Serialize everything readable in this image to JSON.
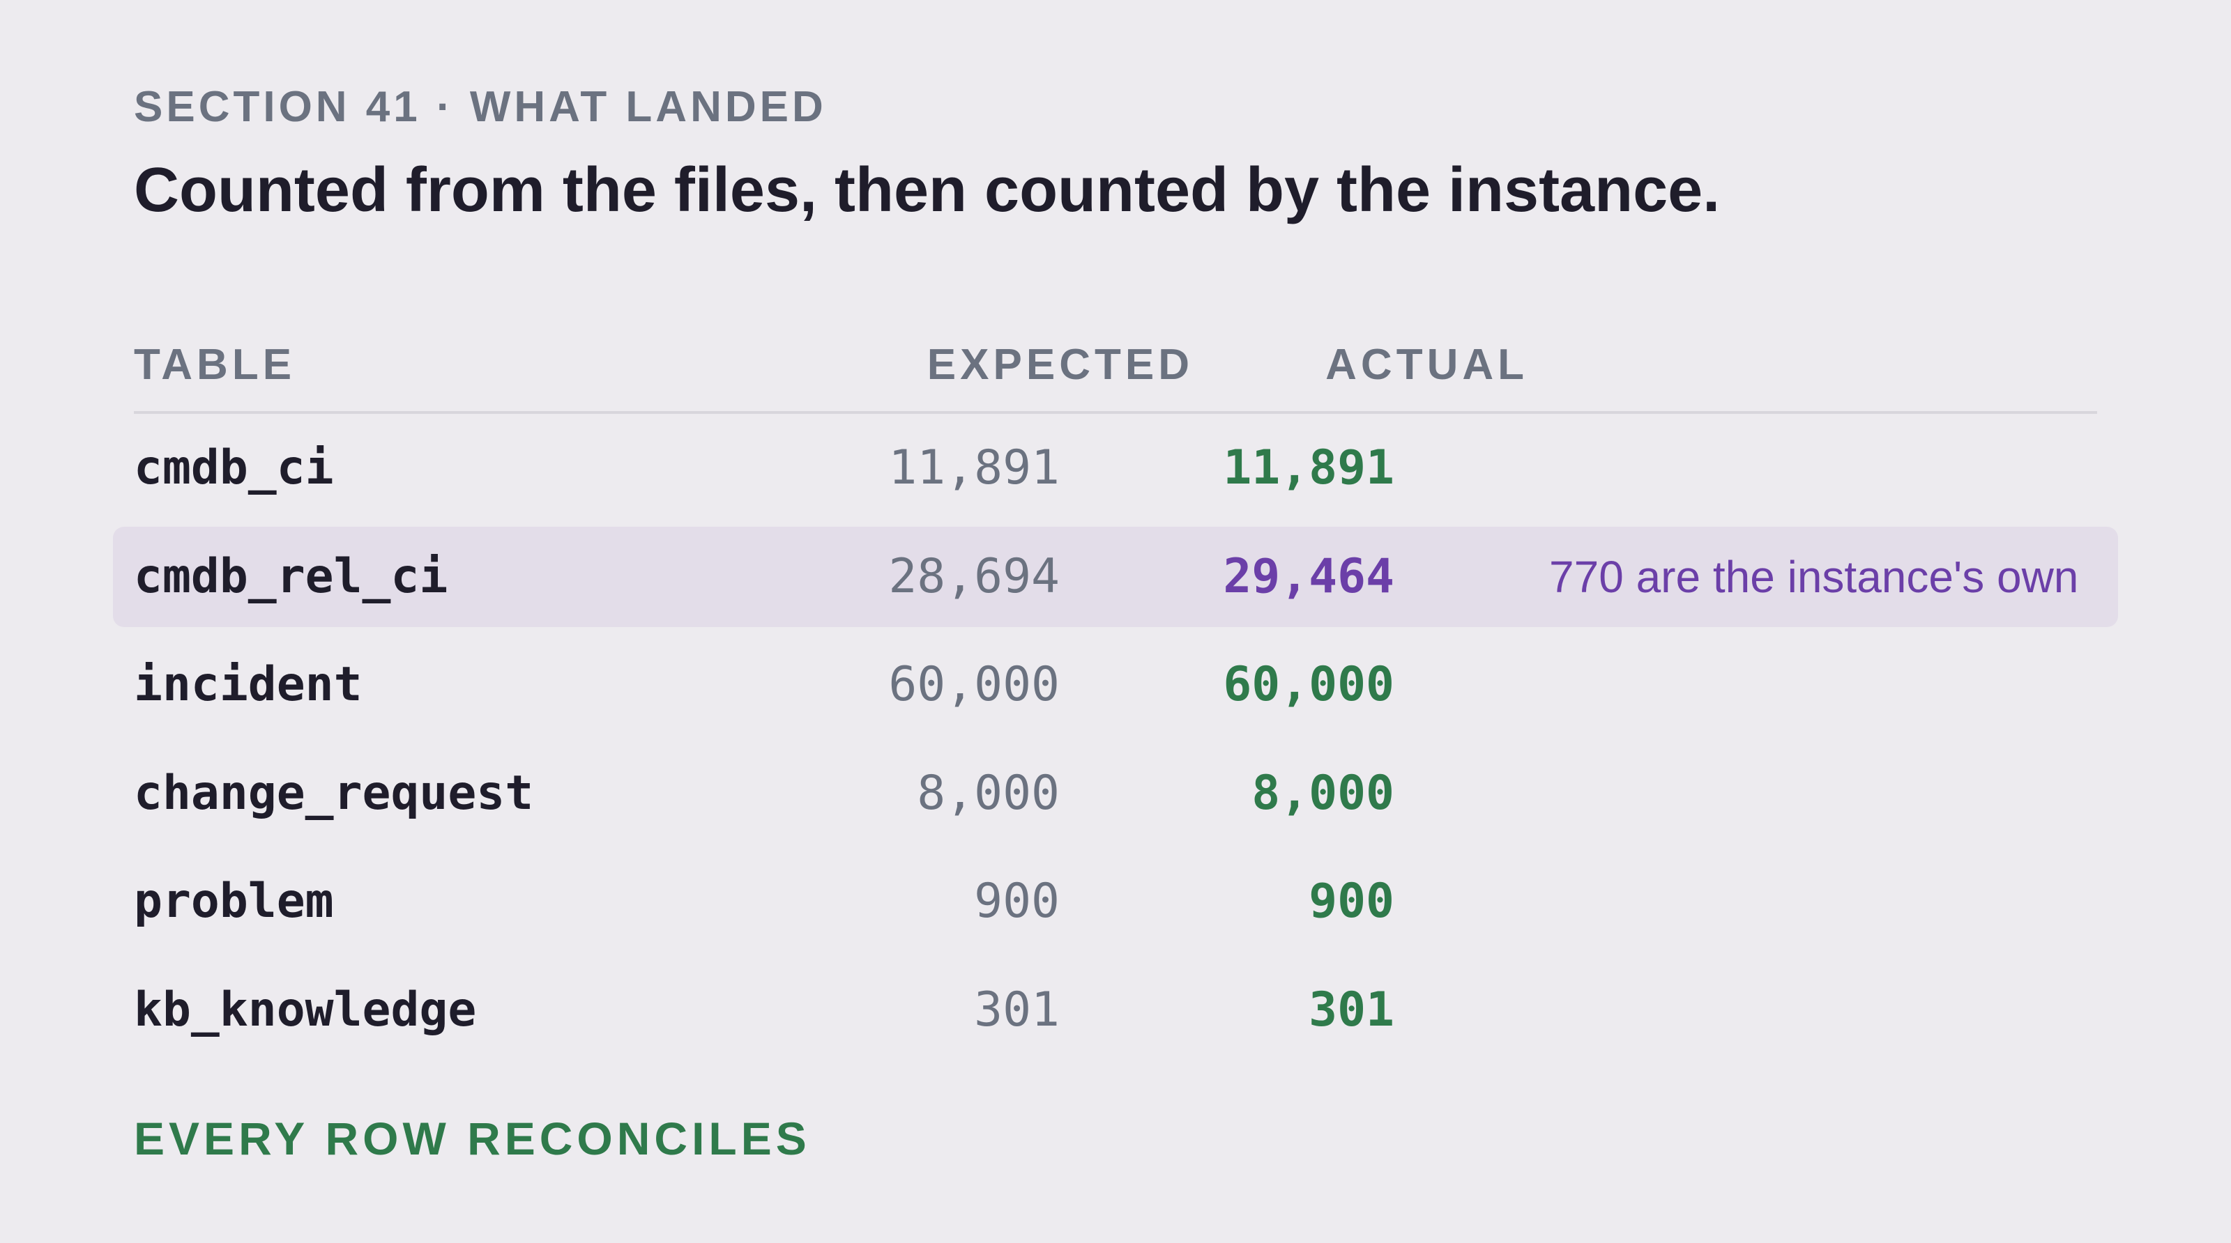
{
  "header": {
    "eyebrow": "SECTION 41 · WHAT LANDED",
    "title": "Counted from the files, then counted by the instance."
  },
  "table": {
    "columns": {
      "table": "TABLE",
      "expected": "EXPECTED",
      "actual": "ACTUAL"
    },
    "rows": [
      {
        "name": "cmdb_ci",
        "expected": "11,891",
        "actual": "11,891",
        "note": ""
      },
      {
        "name": "cmdb_rel_ci",
        "expected": "28,694",
        "actual": "29,464",
        "note": "770 are the instance's own"
      },
      {
        "name": "incident",
        "expected": "60,000",
        "actual": "60,000",
        "note": ""
      },
      {
        "name": "change_request",
        "expected": "8,000",
        "actual": "8,000",
        "note": ""
      },
      {
        "name": "problem",
        "expected": "900",
        "actual": "900",
        "note": ""
      },
      {
        "name": "kb_knowledge",
        "expected": "301",
        "actual": "301",
        "note": ""
      }
    ]
  },
  "footer": {
    "status": "EVERY ROW RECONCILES"
  },
  "colors": {
    "background": "#edebef",
    "match": "#2f7a4b",
    "mismatch": "#6b3fa8",
    "highlight_row": "#e3dde9",
    "muted": "#6b7280"
  }
}
